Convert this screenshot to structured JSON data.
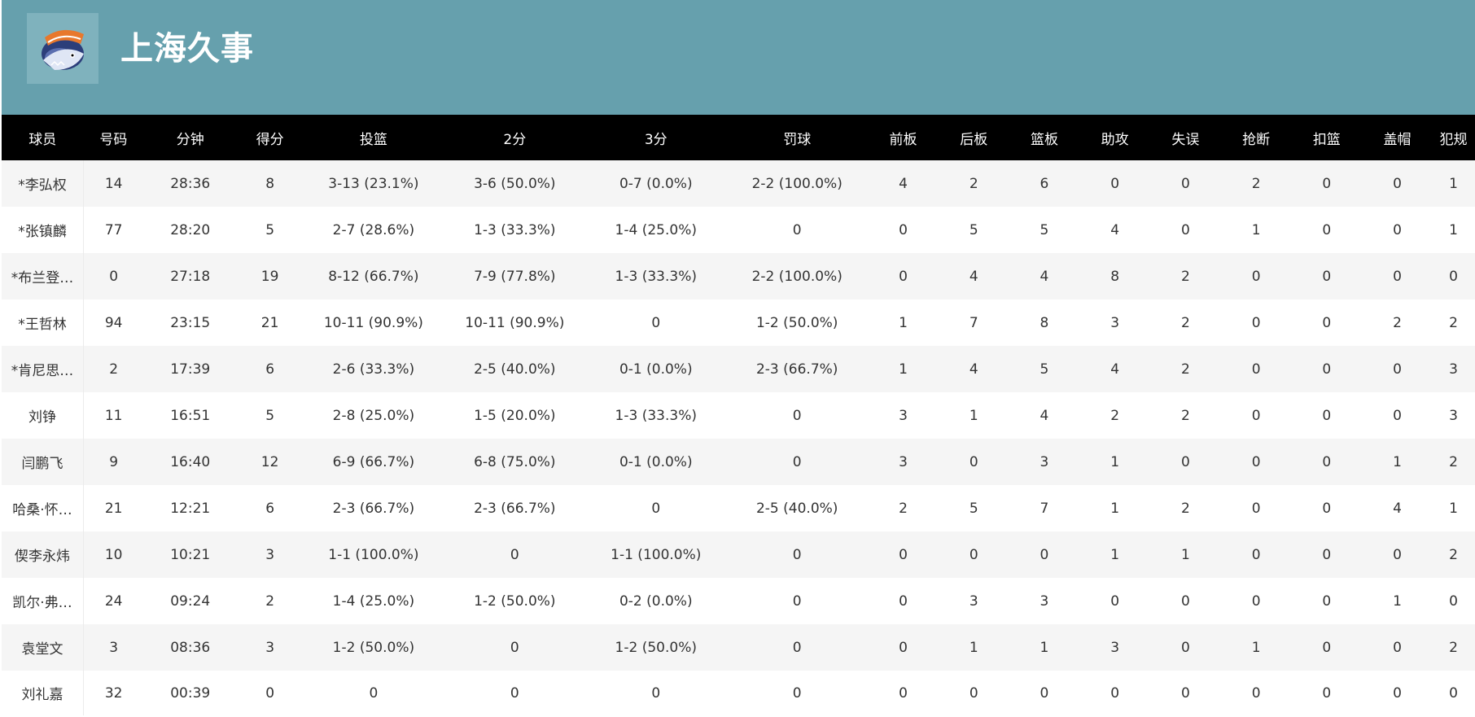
{
  "team": {
    "name": "上海久事",
    "logo_icon": "shanghai-sharks-logo-icon",
    "header_color": "#66a0ad"
  },
  "table": {
    "columns": [
      "球员",
      "号码",
      "分钟",
      "得分",
      "投篮",
      "2分",
      "3分",
      "罚球",
      "前板",
      "后板",
      "篮板",
      "助攻",
      "失误",
      "抢断",
      "扣篮",
      "盖帽",
      "犯规"
    ],
    "rows": [
      [
        "*李弘权",
        "14",
        "28:36",
        "8",
        "3-13 (23.1%)",
        "3-6 (50.0%)",
        "0-7 (0.0%)",
        "2-2 (100.0%)",
        "4",
        "2",
        "6",
        "0",
        "0",
        "2",
        "0",
        "0",
        "1"
      ],
      [
        "*张镇麟",
        "77",
        "28:20",
        "5",
        "2-7 (28.6%)",
        "1-3 (33.3%)",
        "1-4 (25.0%)",
        "0",
        "0",
        "5",
        "5",
        "4",
        "0",
        "1",
        "0",
        "0",
        "1"
      ],
      [
        "*布兰登…",
        "0",
        "27:18",
        "19",
        "8-12 (66.7%)",
        "7-9 (77.8%)",
        "1-3 (33.3%)",
        "2-2 (100.0%)",
        "0",
        "4",
        "4",
        "8",
        "2",
        "0",
        "0",
        "0",
        "0"
      ],
      [
        "*王哲林",
        "94",
        "23:15",
        "21",
        "10-11 (90.9%)",
        "10-11 (90.9%)",
        "0",
        "1-2 (50.0%)",
        "1",
        "7",
        "8",
        "3",
        "2",
        "0",
        "0",
        "2",
        "2"
      ],
      [
        "*肯尼思…",
        "2",
        "17:39",
        "6",
        "2-6 (33.3%)",
        "2-5 (40.0%)",
        "0-1 (0.0%)",
        "2-3 (66.7%)",
        "1",
        "4",
        "5",
        "4",
        "2",
        "0",
        "0",
        "0",
        "3"
      ],
      [
        "刘铮",
        "11",
        "16:51",
        "5",
        "2-8 (25.0%)",
        "1-5 (20.0%)",
        "1-3 (33.3%)",
        "0",
        "3",
        "1",
        "4",
        "2",
        "2",
        "0",
        "0",
        "0",
        "3"
      ],
      [
        "闫鹏飞",
        "9",
        "16:40",
        "12",
        "6-9 (66.7%)",
        "6-8 (75.0%)",
        "0-1 (0.0%)",
        "0",
        "3",
        "0",
        "3",
        "1",
        "0",
        "0",
        "0",
        "1",
        "2"
      ],
      [
        "哈桑·怀…",
        "21",
        "12:21",
        "6",
        "2-3 (66.7%)",
        "2-3 (66.7%)",
        "0",
        "2-5 (40.0%)",
        "2",
        "5",
        "7",
        "1",
        "2",
        "0",
        "0",
        "4",
        "1"
      ],
      [
        "偰李永炜",
        "10",
        "10:21",
        "3",
        "1-1 (100.0%)",
        "0",
        "1-1 (100.0%)",
        "0",
        "0",
        "0",
        "0",
        "1",
        "1",
        "0",
        "0",
        "0",
        "2"
      ],
      [
        "凯尔·弗…",
        "24",
        "09:24",
        "2",
        "1-4 (25.0%)",
        "1-2 (50.0%)",
        "0-2 (0.0%)",
        "0",
        "0",
        "3",
        "3",
        "0",
        "0",
        "0",
        "0",
        "1",
        "0"
      ],
      [
        "袁堂文",
        "3",
        "08:36",
        "3",
        "1-2 (50.0%)",
        "0",
        "1-2 (50.0%)",
        "0",
        "0",
        "1",
        "1",
        "3",
        "0",
        "1",
        "0",
        "0",
        "2"
      ],
      [
        "刘礼嘉",
        "32",
        "00:39",
        "0",
        "0",
        "0",
        "0",
        "0",
        "0",
        "0",
        "0",
        "0",
        "0",
        "0",
        "0",
        "0",
        "0"
      ]
    ]
  }
}
